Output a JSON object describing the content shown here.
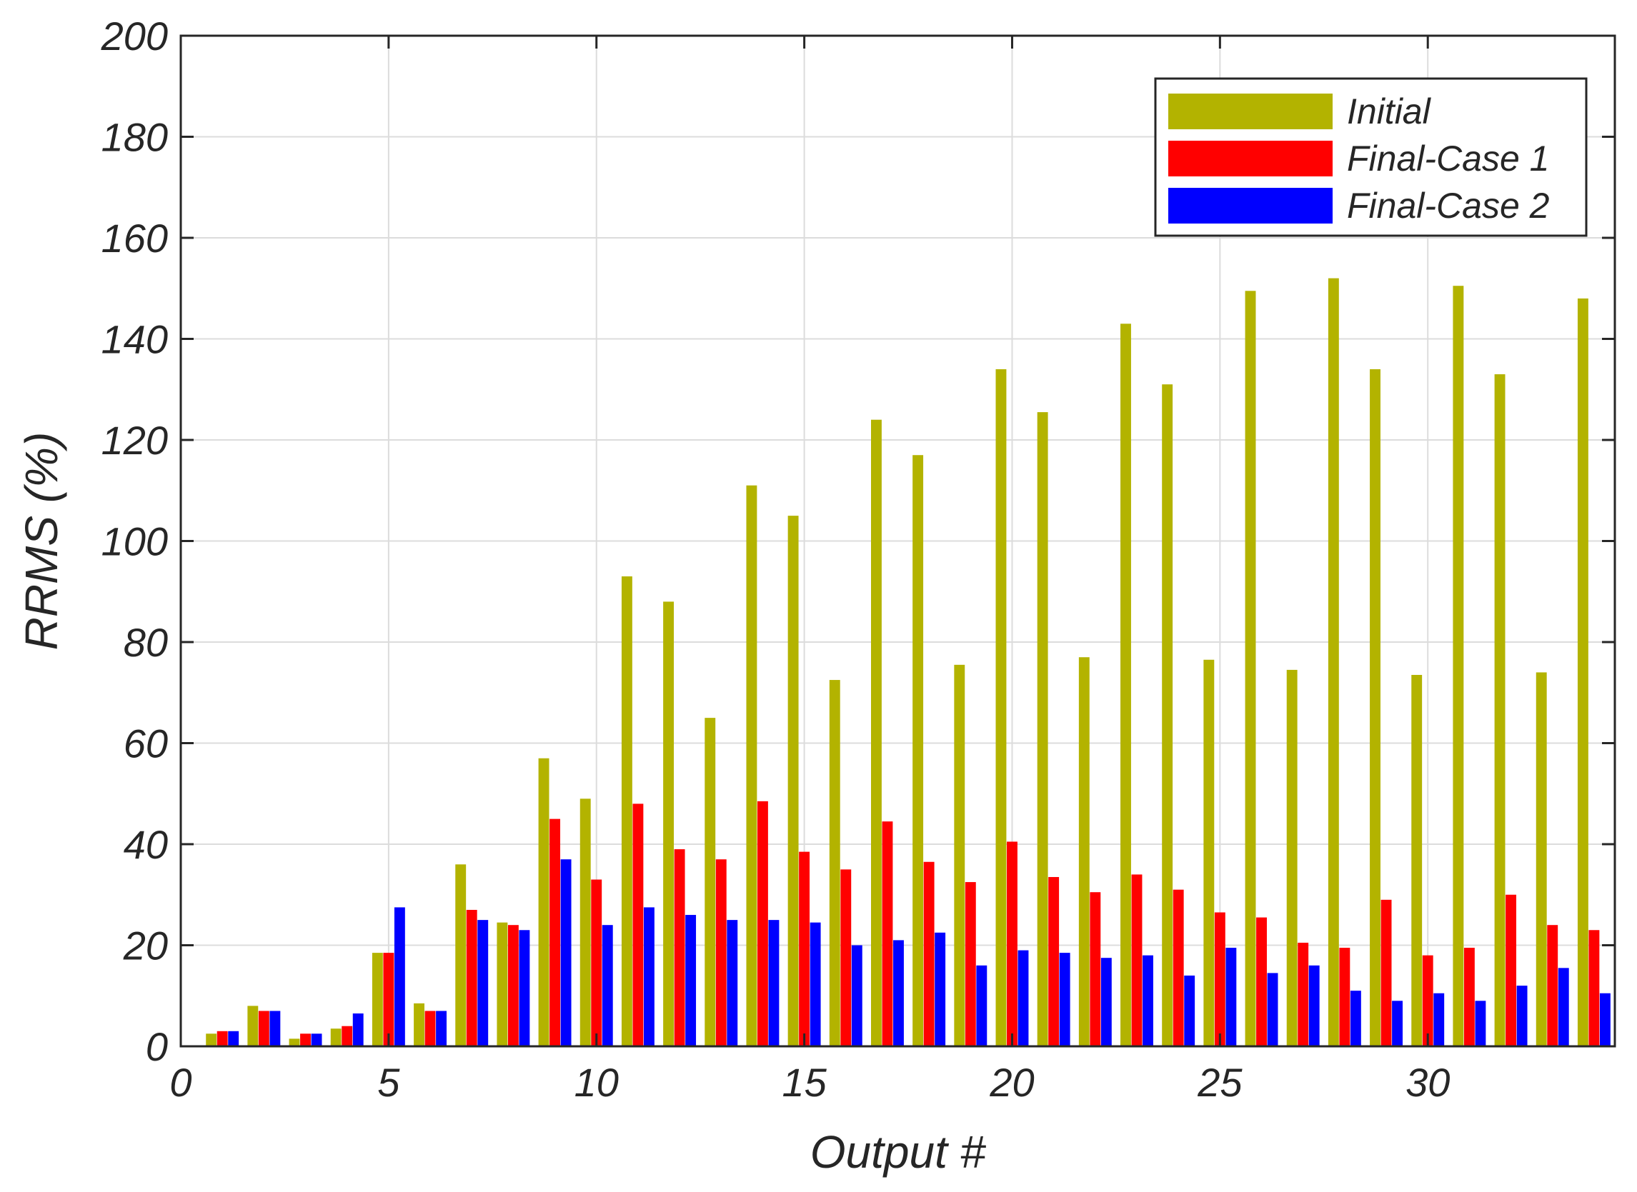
{
  "chart_data": {
    "type": "bar",
    "xlabel": "Output #",
    "ylabel": "RRMS (%)",
    "xlim": [
      0,
      34.5
    ],
    "ylim": [
      0,
      200
    ],
    "xticks": [
      0,
      5,
      10,
      15,
      20,
      25,
      30
    ],
    "yticks": [
      0,
      20,
      40,
      60,
      80,
      100,
      120,
      140,
      160,
      180,
      200
    ],
    "grid": true,
    "legend_position": "top-right",
    "categories": [
      1,
      2,
      3,
      4,
      5,
      6,
      7,
      8,
      9,
      10,
      11,
      12,
      13,
      14,
      15,
      16,
      17,
      18,
      19,
      20,
      21,
      22,
      23,
      24,
      25,
      26,
      27,
      28,
      29,
      30,
      31,
      32,
      33,
      34
    ],
    "series": [
      {
        "name": "Initial",
        "color": "#b3b300",
        "values": [
          2.5,
          8,
          1.5,
          3.5,
          18.5,
          8.5,
          36,
          24.5,
          57,
          49,
          93,
          88,
          65,
          111,
          105,
          72.5,
          124,
          117,
          75.5,
          134,
          125.5,
          77,
          143,
          131,
          76.5,
          149.5,
          74.5,
          152,
          134,
          73.5,
          150.5,
          133,
          74,
          148
        ]
      },
      {
        "name": "Final-Case 1",
        "color": "#ff0000",
        "values": [
          3,
          7,
          2.5,
          4,
          18.5,
          7,
          27,
          24,
          45,
          33,
          48,
          39,
          37,
          48.5,
          38.5,
          35,
          44.5,
          36.5,
          32.5,
          40.5,
          33.5,
          30.5,
          34,
          31,
          26.5,
          25.5,
          20.5,
          19.5,
          29,
          18,
          19.5,
          30,
          24,
          23
        ]
      },
      {
        "name": "Final-Case 2",
        "color": "#0000ff",
        "values": [
          3,
          7,
          2.5,
          6.5,
          27.5,
          7,
          25,
          23,
          37,
          24,
          27.5,
          26,
          25,
          25,
          24.5,
          20,
          21,
          22.5,
          16,
          19,
          18.5,
          17.5,
          18,
          14,
          19.5,
          14.5,
          16,
          11,
          9,
          10.5,
          9,
          12,
          15.5,
          10.5
        ]
      }
    ]
  }
}
